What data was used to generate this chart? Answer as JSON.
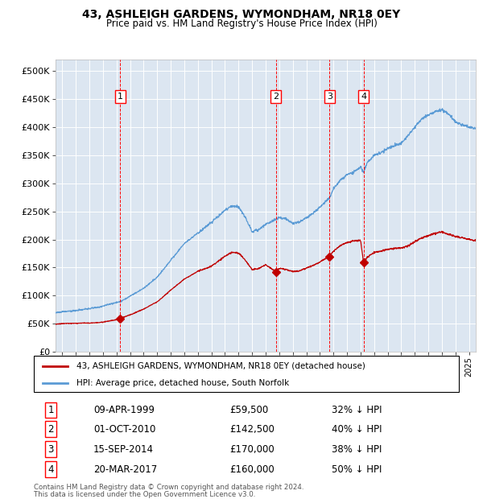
{
  "title": "43, ASHLEIGH GARDENS, WYMONDHAM, NR18 0EY",
  "subtitle": "Price paid vs. HM Land Registry's House Price Index (HPI)",
  "legend_line1": "43, ASHLEIGH GARDENS, WYMONDHAM, NR18 0EY (detached house)",
  "legend_line2": "HPI: Average price, detached house, South Norfolk",
  "footer_line1": "Contains HM Land Registry data © Crown copyright and database right 2024.",
  "footer_line2": "This data is licensed under the Open Government Licence v3.0.",
  "transactions": [
    {
      "num": 1,
      "date": "09-APR-1999",
      "price": "£59,500",
      "pct": "32% ↓ HPI",
      "year": 1999.27
    },
    {
      "num": 2,
      "date": "01-OCT-2010",
      "price": "£142,500",
      "pct": "40% ↓ HPI",
      "year": 2010.75
    },
    {
      "num": 3,
      "date": "15-SEP-2014",
      "price": "£170,000",
      "pct": "38% ↓ HPI",
      "year": 2014.71
    },
    {
      "num": 4,
      "date": "20-MAR-2017",
      "price": "£160,000",
      "pct": "50% ↓ HPI",
      "year": 2017.22
    }
  ],
  "transaction_prices": [
    59500,
    142500,
    170000,
    160000
  ],
  "ylim": [
    0,
    520000
  ],
  "yticks": [
    0,
    50000,
    100000,
    150000,
    200000,
    250000,
    300000,
    350000,
    400000,
    450000,
    500000
  ],
  "ytick_labels": [
    "£0",
    "£50K",
    "£100K",
    "£150K",
    "£200K",
    "£250K",
    "£300K",
    "£350K",
    "£400K",
    "£450K",
    "£500K"
  ],
  "xlim_start": 1994.5,
  "xlim_end": 2025.5,
  "hpi_color": "#5b9bd5",
  "price_color": "#c00000",
  "bg_color": "#dce6f1",
  "grid_color": "#ffffff"
}
